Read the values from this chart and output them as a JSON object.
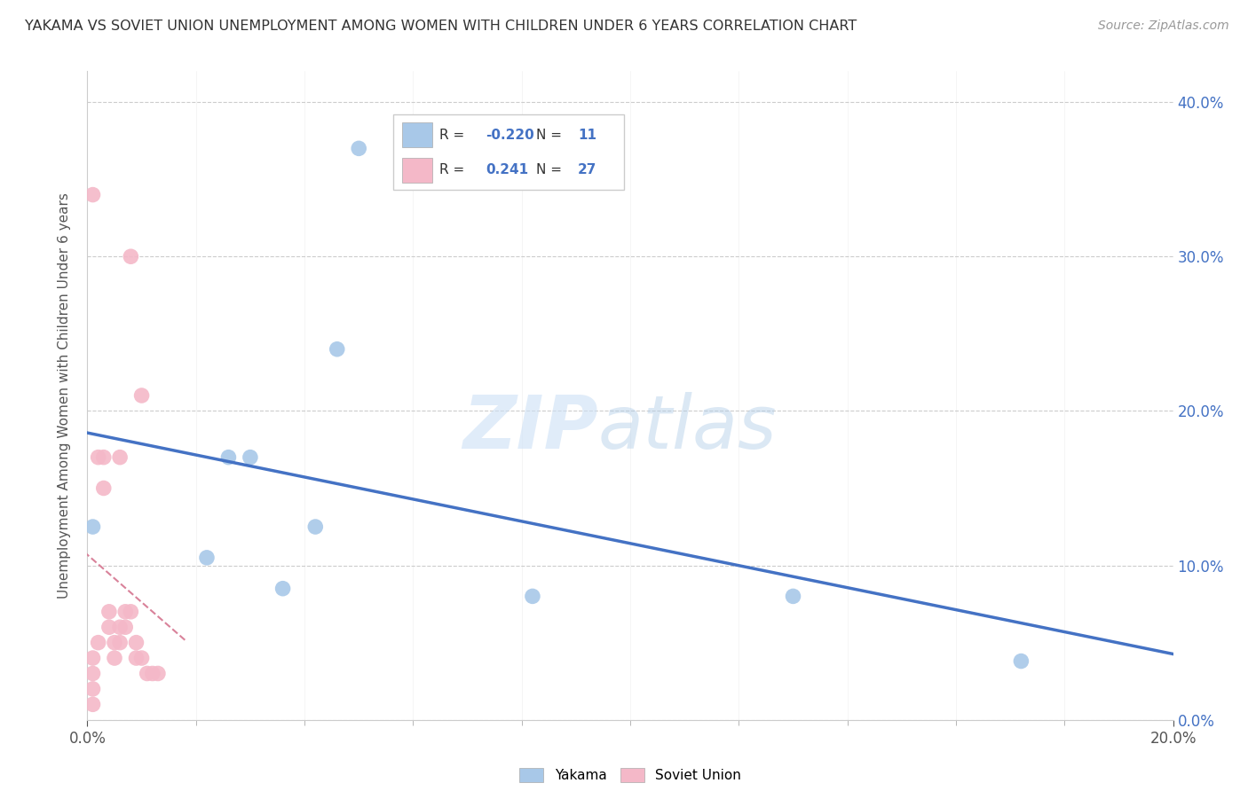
{
  "title": "YAKAMA VS SOVIET UNION UNEMPLOYMENT AMONG WOMEN WITH CHILDREN UNDER 6 YEARS CORRELATION CHART",
  "source": "Source: ZipAtlas.com",
  "ylabel": "Unemployment Among Women with Children Under 6 years",
  "xlim": [
    0.0,
    0.2
  ],
  "ylim": [
    0.0,
    0.42
  ],
  "x_ticks": [
    0.0,
    0.2
  ],
  "x_ticks_minor": [
    0.02,
    0.04,
    0.06,
    0.08,
    0.1,
    0.12,
    0.14,
    0.16,
    0.18
  ],
  "y_ticks": [
    0.0,
    0.1,
    0.2,
    0.3,
    0.4
  ],
  "yakama_R": -0.22,
  "yakama_N": 11,
  "soviet_R": 0.241,
  "soviet_N": 27,
  "yakama_color": "#a8c8e8",
  "soviet_color": "#f4b8c8",
  "trend_yakama_color": "#4472c4",
  "trend_soviet_color": "#d9829a",
  "yakama_x": [
    0.001,
    0.022,
    0.026,
    0.03,
    0.036,
    0.042,
    0.046,
    0.05,
    0.082,
    0.13,
    0.172
  ],
  "yakama_y": [
    0.125,
    0.105,
    0.17,
    0.17,
    0.085,
    0.125,
    0.24,
    0.37,
    0.08,
    0.08,
    0.038
  ],
  "soviet_x": [
    0.001,
    0.001,
    0.001,
    0.001,
    0.001,
    0.002,
    0.002,
    0.003,
    0.003,
    0.004,
    0.004,
    0.005,
    0.005,
    0.006,
    0.006,
    0.006,
    0.007,
    0.007,
    0.008,
    0.008,
    0.009,
    0.009,
    0.01,
    0.01,
    0.011,
    0.012,
    0.013
  ],
  "soviet_y": [
    0.34,
    0.04,
    0.03,
    0.02,
    0.01,
    0.17,
    0.05,
    0.15,
    0.17,
    0.07,
    0.06,
    0.05,
    0.04,
    0.17,
    0.06,
    0.05,
    0.07,
    0.06,
    0.3,
    0.07,
    0.05,
    0.04,
    0.21,
    0.04,
    0.03,
    0.03,
    0.03
  ]
}
